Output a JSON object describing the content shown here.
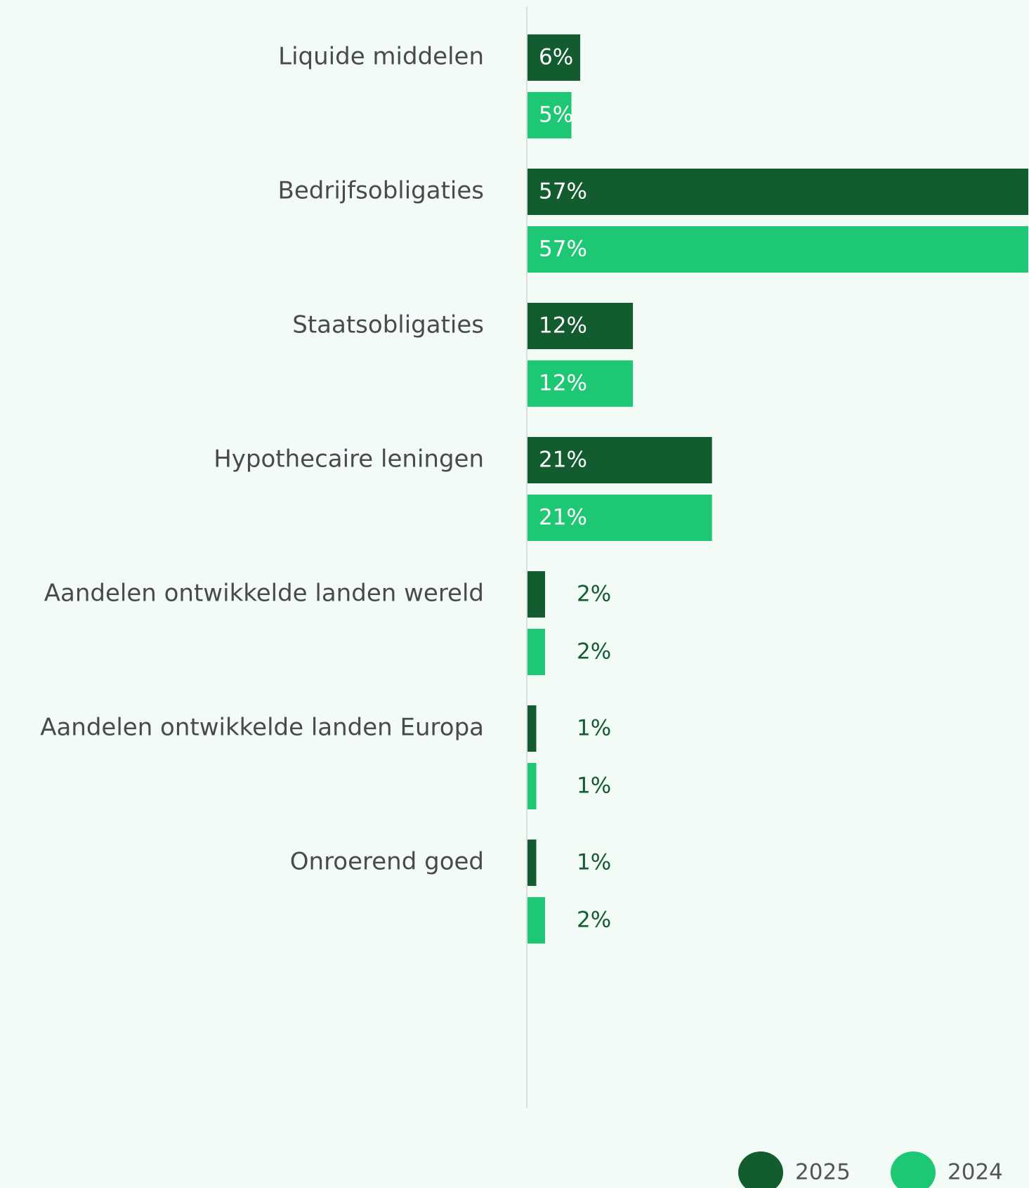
{
  "chart_data": {
    "type": "bar",
    "orientation": "horizontal",
    "categories": [
      "Liquide middelen",
      "Bedrijfsobligaties",
      "Staatsobligaties",
      "Hypothecaire leningen",
      "Aandelen ontwikkelde landen wereld",
      "Aandelen ontwikkelde landen Europa",
      "Onroerend goed"
    ],
    "series": [
      {
        "name": "2025",
        "color": "#125c30",
        "values": [
          6,
          57,
          12,
          21,
          2,
          1,
          1
        ],
        "value_labels": [
          "6%",
          "57%",
          "12%",
          "21%",
          "2%",
          "1%",
          "1%"
        ]
      },
      {
        "name": "2024",
        "color": "#1ec773",
        "values": [
          5,
          57,
          12,
          21,
          2,
          1,
          2
        ],
        "value_labels": [
          "5%",
          "57%",
          "12%",
          "21%",
          "2%",
          "1%",
          "2%"
        ]
      }
    ],
    "legend": "bottom-right"
  }
}
